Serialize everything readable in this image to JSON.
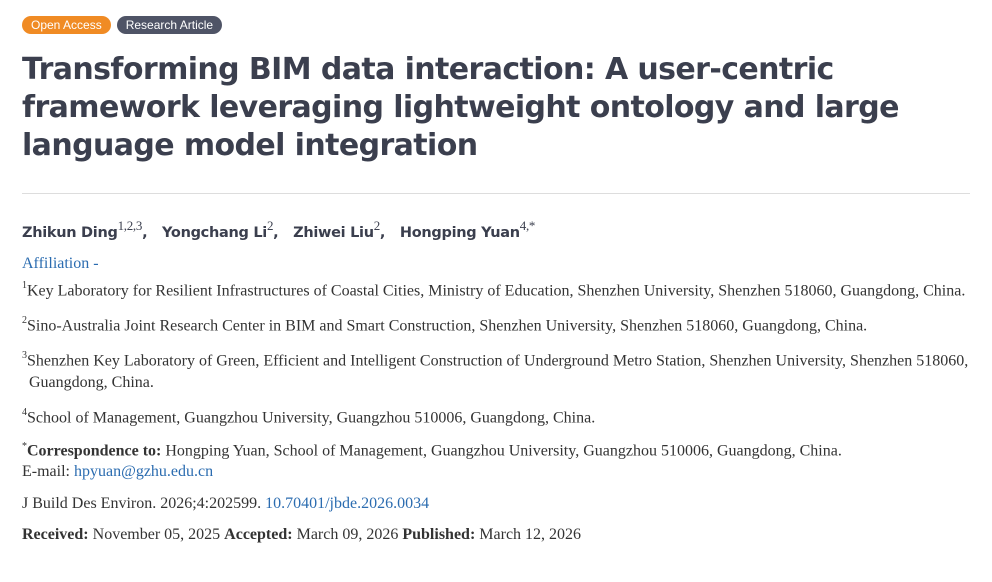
{
  "badges": {
    "open_access": "Open Access",
    "article_type": "Research Article"
  },
  "title": "Transforming BIM data interaction: A user-centric framework leveraging lightweight ontology and large language model integration",
  "authors": [
    {
      "name": "Zhikun Ding",
      "sup": "1,2,3"
    },
    {
      "name": "Yongchang Li",
      "sup": "2"
    },
    {
      "name": "Zhiwei Liu",
      "sup": "2"
    },
    {
      "name": "Hongping Yuan",
      "sup": "4,*"
    }
  ],
  "separator": ",",
  "affiliation_toggle": {
    "label": "Affiliation",
    "icon": "-"
  },
  "affiliations": [
    {
      "num": "1",
      "text": "Key Laboratory for Resilient Infrastructures of Coastal Cities, Ministry of Education, Shenzhen University, Shenzhen 518060, Guangdong, China."
    },
    {
      "num": "2",
      "text": "Sino-Australia Joint Research Center in BIM and Smart Construction, Shenzhen University, Shenzhen 518060, Guangdong, China."
    },
    {
      "num": "3",
      "text": "Shenzhen Key Laboratory of Green, Efficient and Intelligent Construction of Underground Metro Station, Shenzhen University, Shenzhen 518060, Guangdong, China."
    },
    {
      "num": "4",
      "text": "School of Management, Guangzhou University, Guangzhou 510006, Guangdong, China."
    }
  ],
  "correspondence": {
    "mark": "*",
    "label": "Correspondence to:",
    "text": " Hongping Yuan, School of Management, Guangzhou University, Guangzhou 510006, Guangdong, China.",
    "email_label": "E-mail: ",
    "email": "hpyuan@gzhu.edu.cn"
  },
  "citation": {
    "text": "J Build Des Environ. 2026;4:202599. ",
    "doi": "10.70401/jbde.2026.0034"
  },
  "dates": {
    "received_label": "Received:",
    "received": " November 05, 2025 ",
    "accepted_label": "Accepted:",
    "accepted": " March 09, 2026 ",
    "published_label": "Published:",
    "published": " March 12, 2026"
  }
}
